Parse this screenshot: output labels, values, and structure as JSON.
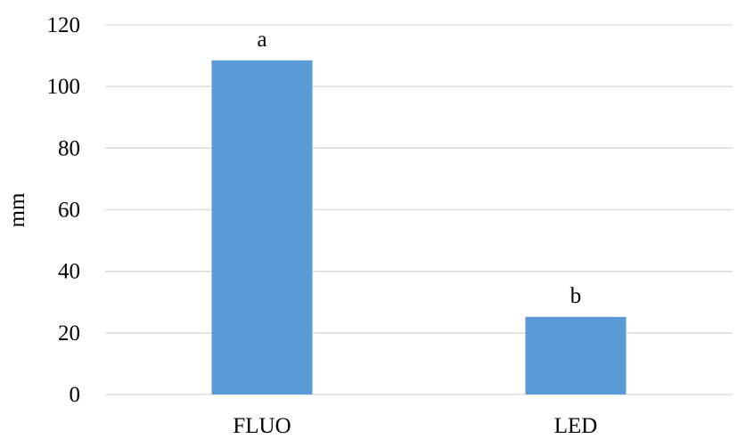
{
  "chart_data": {
    "type": "bar",
    "title": "",
    "xlabel": "",
    "ylabel": "mm",
    "categories": [
      "FLUO",
      "LED"
    ],
    "values": [
      108.5,
      25.2
    ],
    "data_labels": [
      "a",
      "b"
    ],
    "ylim": [
      0,
      120
    ],
    "yticks": [
      0,
      20,
      40,
      60,
      80,
      100,
      120
    ],
    "grid": true,
    "legend": "none",
    "colors": {
      "bar": "#5b9bd5",
      "grid": "#d9d9d9",
      "axis": "#d9d9d9",
      "text": "#000000"
    }
  }
}
